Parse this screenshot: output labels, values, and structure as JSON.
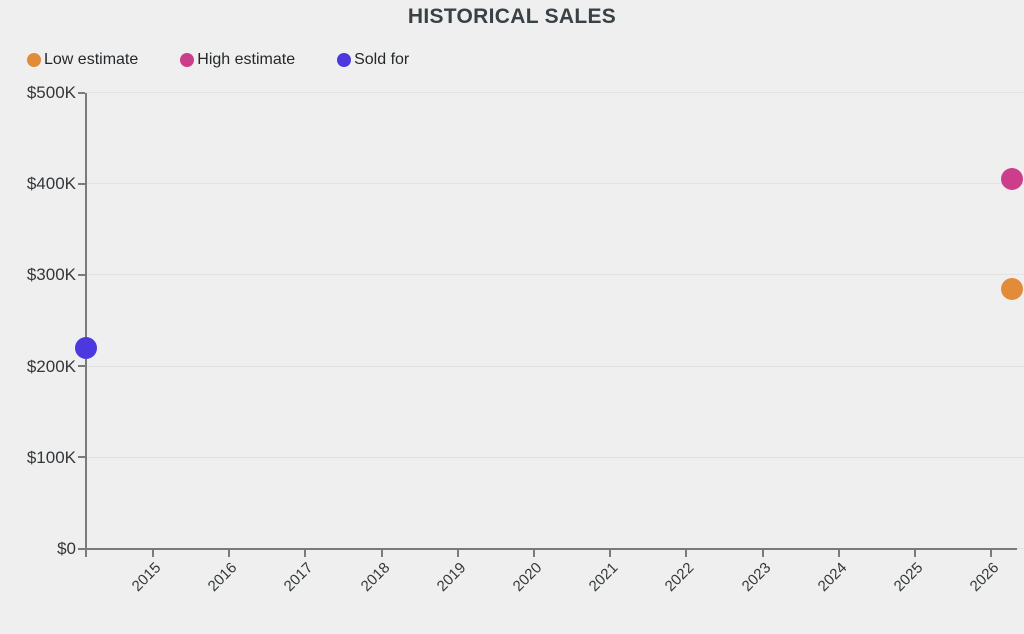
{
  "title": "HISTORICAL SALES",
  "colors": {
    "background": "#efefef",
    "gridline": "#e2e2e2",
    "axis": "#7a7a7a",
    "title_text": "#3a4145",
    "tick_text": "#33373a",
    "legend_text": "#24282b",
    "low_estimate": "#e28c3a",
    "high_estimate": "#cc3e8c",
    "sold_for": "#4b38df"
  },
  "legend": [
    {
      "label": "Low estimate",
      "color": "#e28c3a"
    },
    {
      "label": "High estimate",
      "color": "#cc3e8c"
    },
    {
      "label": "Sold for",
      "color": "#4b38df"
    }
  ],
  "chart_data": {
    "type": "scatter",
    "title": "HISTORICAL SALES",
    "xlabel": "",
    "ylabel": "",
    "xlim": [
      2014.12,
      2026.34
    ],
    "ylim": [
      0,
      500000
    ],
    "grid": "horizontal",
    "legend_position": "top-left",
    "x_ticks": [
      2015,
      2016,
      2017,
      2018,
      2019,
      2020,
      2021,
      2022,
      2023,
      2024,
      2025,
      2026
    ],
    "y_ticks": [
      {
        "value": 0,
        "label": "$0"
      },
      {
        "value": 100000,
        "label": "$100K"
      },
      {
        "value": 200000,
        "label": "$200K"
      },
      {
        "value": 300000,
        "label": "$300K"
      },
      {
        "value": 400000,
        "label": "$400K"
      },
      {
        "value": 500000,
        "label": "$500K"
      }
    ],
    "point_radius": 11,
    "series": [
      {
        "name": "Low estimate",
        "color": "#e28c3a",
        "points": [
          {
            "x": 2026.28,
            "y": 285000
          }
        ]
      },
      {
        "name": "High estimate",
        "color": "#cc3e8c",
        "points": [
          {
            "x": 2026.28,
            "y": 405000
          }
        ]
      },
      {
        "name": "Sold for",
        "color": "#4b38df",
        "points": [
          {
            "x": 2014.12,
            "y": 220000
          }
        ]
      }
    ]
  }
}
